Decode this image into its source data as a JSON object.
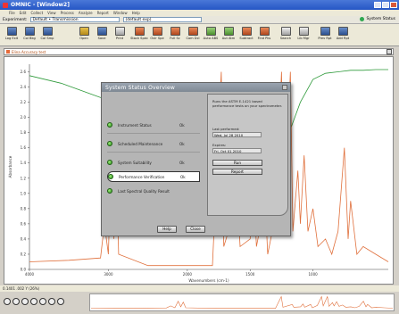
{
  "window": {
    "title": "OMNIC - [Window2]"
  },
  "menu": [
    "File",
    "Edit",
    "Collect",
    "View",
    "Process",
    "Analyze",
    "Report",
    "Window",
    "Help"
  ],
  "experiment": {
    "label": "Experiment:",
    "value": "Default • Transmission",
    "second": "(default exp)",
    "status": "System Status"
  },
  "toolbar": [
    {
      "label": "Log Exit",
      "icon": "log-exit-icon",
      "c": "a"
    },
    {
      "label": "Col Bkg",
      "icon": "collect-background-icon",
      "c": "a"
    },
    {
      "label": "Col Smp",
      "icon": "collect-sample-icon",
      "c": "a"
    },
    {
      "label": "Open",
      "icon": "open-folder-icon",
      "c": "b"
    },
    {
      "label": "Save",
      "icon": "save-icon",
      "c": "a"
    },
    {
      "label": "Print",
      "icon": "print-icon",
      "c": "d"
    },
    {
      "label": "Stack Spec",
      "icon": "stack-spectra-icon",
      "c": "e"
    },
    {
      "label": "Ovlr Spe",
      "icon": "overlay-spectra-icon",
      "c": "e"
    },
    {
      "label": "Full Sc",
      "icon": "full-scale-icon",
      "c": "e"
    },
    {
      "label": "Com Dcl",
      "icon": "common-scale-icon",
      "c": "e"
    },
    {
      "label": "Auto ABS",
      "icon": "auto-baseline-icon",
      "c": "c"
    },
    {
      "label": "Aut Atm",
      "icon": "atmospheric-correction-icon",
      "c": "c"
    },
    {
      "label": "Subtract",
      "icon": "subtract-icon",
      "c": "e"
    },
    {
      "label": "Find Pks",
      "icon": "find-peaks-icon",
      "c": "e"
    },
    {
      "label": "Search",
      "icon": "search-icon",
      "c": "d"
    },
    {
      "label": "Lib Mgr",
      "icon": "library-manager-icon",
      "c": "d"
    },
    {
      "label": "Prev Rpt",
      "icon": "preview-report-icon",
      "c": "a"
    },
    {
      "label": "Add Rpt",
      "icon": "add-report-icon",
      "c": "a"
    }
  ],
  "sample": {
    "label": "Elina Accuracy test",
    "color": "#e66b3a"
  },
  "chart_data": {
    "type": "line",
    "xlabel": "Wavenumbers (cm-1)",
    "ylabel": "Absorbance",
    "x_ticks": [
      4000,
      3000,
      2000,
      1500,
      1000
    ],
    "y_ticks": [
      2.6,
      2.4,
      2.2,
      2.0,
      1.8,
      1.6,
      1.4,
      1.2,
      1.0,
      0.8,
      0.6,
      0.4,
      0.2,
      0.0
    ],
    "xlim": [
      4000,
      400
    ],
    "ylim": [
      0.0,
      2.7
    ],
    "series": [
      {
        "color": "#2e9a3a",
        "values": [
          [
            4000,
            2.55
          ],
          [
            3600,
            2.45
          ],
          [
            3200,
            2.3
          ],
          [
            2800,
            2.15
          ],
          [
            2400,
            2.0
          ],
          [
            2200,
            1.95
          ],
          [
            2000,
            1.9
          ],
          [
            1900,
            1.95
          ],
          [
            1800,
            1.9
          ],
          [
            1700,
            1.6
          ],
          [
            1600,
            1.0
          ],
          [
            1500,
            0.55
          ],
          [
            1400,
            0.85
          ],
          [
            1300,
            1.4
          ],
          [
            1200,
            1.75
          ],
          [
            1100,
            2.2
          ],
          [
            1000,
            2.5
          ],
          [
            900,
            2.58
          ],
          [
            800,
            2.6
          ],
          [
            700,
            2.62
          ],
          [
            600,
            2.62
          ],
          [
            500,
            2.63
          ],
          [
            400,
            2.63
          ]
        ]
      },
      {
        "color": "#e0703c",
        "values": [
          [
            4000,
            0.1
          ],
          [
            3500,
            0.12
          ],
          [
            3100,
            0.15
          ],
          [
            3050,
            0.6
          ],
          [
            3000,
            0.2
          ],
          [
            2960,
            1.6
          ],
          [
            2930,
            0.4
          ],
          [
            2900,
            1.4
          ],
          [
            2870,
            0.2
          ],
          [
            2500,
            0.05
          ],
          [
            2000,
            0.05
          ],
          [
            1800,
            0.05
          ],
          [
            1730,
            2.6
          ],
          [
            1710,
            0.3
          ],
          [
            1600,
            0.9
          ],
          [
            1580,
            0.3
          ],
          [
            1500,
            0.4
          ],
          [
            1470,
            1.0
          ],
          [
            1450,
            0.3
          ],
          [
            1380,
            0.9
          ],
          [
            1360,
            0.2
          ],
          [
            1300,
            0.7
          ],
          [
            1250,
            2.6
          ],
          [
            1230,
            0.6
          ],
          [
            1180,
            2.6
          ],
          [
            1160,
            0.5
          ],
          [
            1120,
            1.3
          ],
          [
            1100,
            0.6
          ],
          [
            1070,
            1.5
          ],
          [
            1040,
            0.5
          ],
          [
            1000,
            0.8
          ],
          [
            960,
            0.3
          ],
          [
            900,
            0.4
          ],
          [
            850,
            0.2
          ],
          [
            800,
            0.5
          ],
          [
            750,
            1.6
          ],
          [
            720,
            0.4
          ],
          [
            700,
            0.9
          ],
          [
            650,
            0.2
          ],
          [
            600,
            0.3
          ],
          [
            500,
            0.2
          ],
          [
            400,
            0.1
          ]
        ]
      }
    ]
  },
  "dialog": {
    "title": "System Status Overview",
    "items": [
      {
        "label": "Instrument Status",
        "status": "Ok"
      },
      {
        "label": "Scheduled Maintenance",
        "status": "Ok"
      },
      {
        "label": "System Suitability",
        "status": "Ok"
      },
      {
        "label": "Performance Verification",
        "status": "Ok"
      },
      {
        "label": "Last Spectral Quality Result",
        "status": ""
      }
    ],
    "description": "Runs the ASTM E-1421 based performance tests on your spectrometer.",
    "last_performed_label": "Last performed:",
    "last_performed_value": "Wed, Jul 28 2010",
    "expires_label": "Expires:",
    "expires_value": "Fri, Oct 01 2010",
    "run_label": "Run",
    "report_label": "Report",
    "help_label": "Help",
    "close_label": "Close"
  },
  "bottom": {
    "status": "0.1401 .002 Y (26%)"
  }
}
